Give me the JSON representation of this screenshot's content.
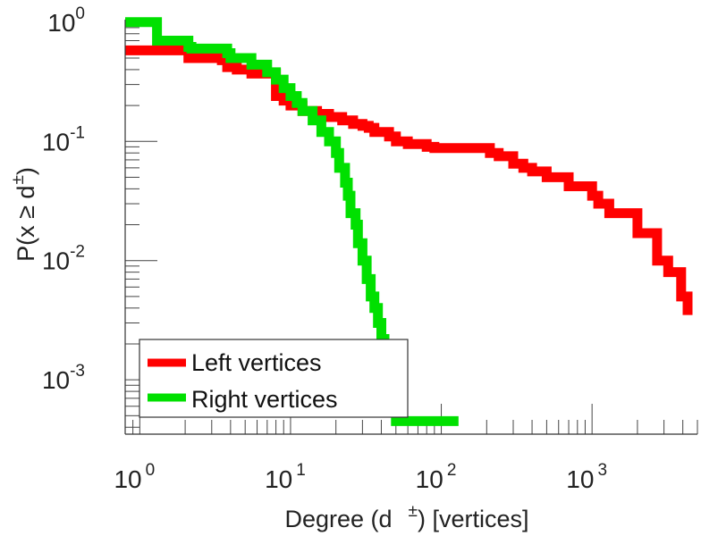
{
  "chart_data": {
    "type": "line",
    "step": true,
    "xscale": "log",
    "yscale": "log",
    "xlim": [
      0.8,
      5000
    ],
    "ylim": [
      0.00035,
      1.05
    ],
    "x_ticks": [
      {
        "base": "10",
        "exp": "0",
        "value": 1
      },
      {
        "base": "10",
        "exp": "1",
        "value": 10
      },
      {
        "base": "10",
        "exp": "2",
        "value": 100
      },
      {
        "base": "10",
        "exp": "3",
        "value": 1000
      }
    ],
    "y_ticks": [
      {
        "base": "10",
        "exp": "0",
        "value": 1
      },
      {
        "base": "10",
        "exp": "-1",
        "value": 0.1
      },
      {
        "base": "10",
        "exp": "-2",
        "value": 0.01
      },
      {
        "base": "10",
        "exp": "-3",
        "value": 0.001
      }
    ],
    "xlabel": {
      "prefix": "Degree (d",
      "sup": "±",
      "suffix": ") [vertices]"
    },
    "ylabel": {
      "prefix": "P(x ≥ d",
      "sup": "±",
      "suffix": ")"
    },
    "legend_position": "bottom-left",
    "series": [
      {
        "name": "Left vertices",
        "color": "#ff0000",
        "x": [
          0.8,
          1.2,
          2.1,
          2.2,
          3.5,
          3.8,
          4.4,
          5.5,
          8,
          9,
          10,
          12,
          15,
          18,
          22,
          26,
          30,
          33,
          36,
          45,
          50,
          60,
          80,
          90,
          200,
          210,
          240,
          300,
          350,
          400,
          500,
          700,
          1000,
          1100,
          1300,
          2000,
          2700,
          3200,
          3900,
          4300
        ],
        "y": [
          0.58,
          0.58,
          0.5,
          0.5,
          0.48,
          0.42,
          0.4,
          0.37,
          0.24,
          0.22,
          0.2,
          0.18,
          0.17,
          0.16,
          0.15,
          0.14,
          0.135,
          0.13,
          0.12,
          0.11,
          0.1,
          0.095,
          0.09,
          0.088,
          0.088,
          0.08,
          0.075,
          0.065,
          0.06,
          0.056,
          0.05,
          0.042,
          0.035,
          0.03,
          0.025,
          0.017,
          0.01,
          0.008,
          0.005,
          0.0035
        ]
      },
      {
        "name": "Right vertices",
        "color": "#00e000",
        "x": [
          0.8,
          1.2,
          1.3,
          2.1,
          2.2,
          3.8,
          4.0,
          5.5,
          7,
          8,
          9,
          10,
          11,
          12,
          14,
          16,
          18,
          20,
          21,
          23,
          24,
          25,
          27,
          28,
          30,
          32,
          34,
          36,
          38,
          40,
          42,
          44,
          46,
          48,
          50,
          130
        ],
        "y": [
          1.0,
          1.0,
          0.7,
          0.62,
          0.6,
          0.55,
          0.5,
          0.44,
          0.38,
          0.33,
          0.28,
          0.24,
          0.21,
          0.18,
          0.15,
          0.12,
          0.1,
          0.08,
          0.06,
          0.045,
          0.035,
          0.025,
          0.02,
          0.014,
          0.01,
          0.007,
          0.005,
          0.004,
          0.003,
          0.0022,
          0.0016,
          0.0012,
          0.0008,
          0.0006,
          0.00045,
          0.00045
        ]
      }
    ]
  }
}
